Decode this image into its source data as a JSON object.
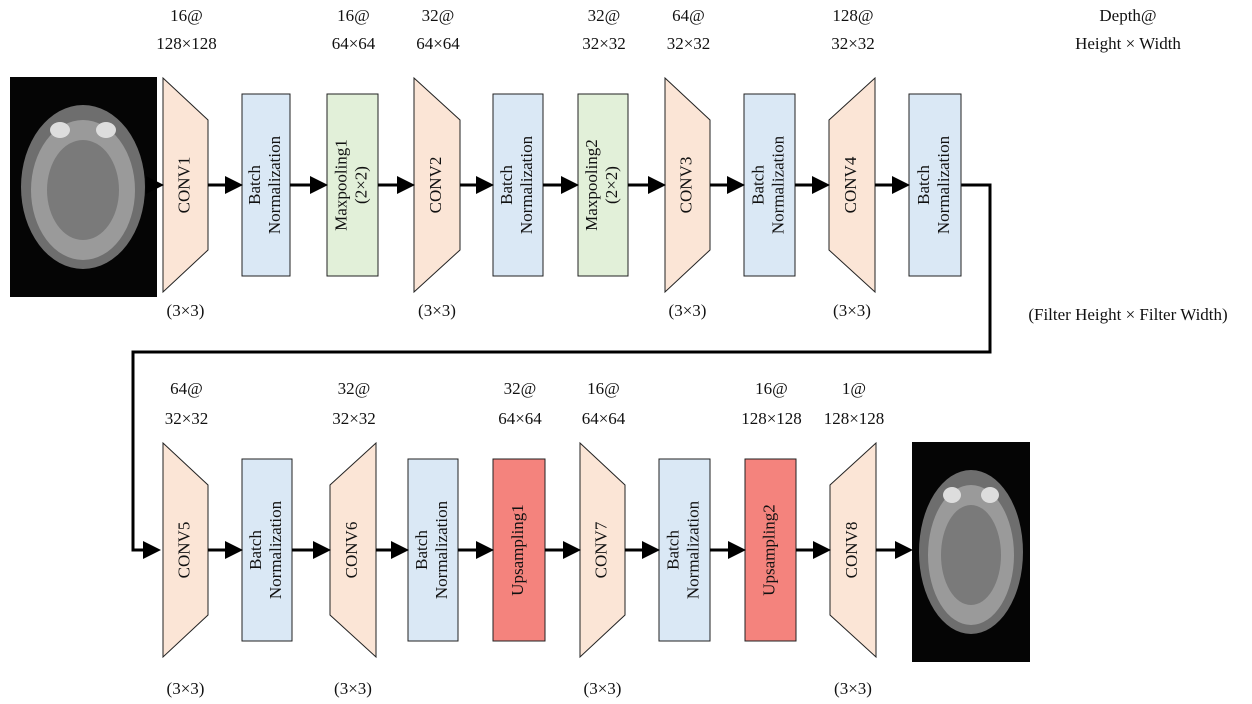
{
  "legend": {
    "dims": [
      "Depth@",
      "Height × Width"
    ],
    "filter": "(Filter Height × Filter Width)"
  },
  "encoder": [
    {
      "label": [
        "CONV1"
      ],
      "dims": [
        "16@",
        "128×128"
      ],
      "filter": "(3×3)"
    },
    {
      "label": [
        "Batch",
        "Normalization"
      ]
    },
    {
      "label": [
        "Maxpooling1",
        "(2×2)"
      ],
      "dims": [
        "16@",
        "64×64"
      ]
    },
    {
      "label": [
        "CONV2"
      ],
      "dims": [
        "32@",
        "64×64"
      ],
      "filter": "(3×3)"
    },
    {
      "label": [
        "Batch",
        "Normalization"
      ]
    },
    {
      "label": [
        "Maxpooling2",
        "(2×2)"
      ],
      "dims": [
        "32@",
        "32×32"
      ]
    },
    {
      "label": [
        "CONV3"
      ],
      "dims": [
        "64@",
        "32×32"
      ],
      "filter": "(3×3)"
    },
    {
      "label": [
        "Batch",
        "Normalization"
      ]
    },
    {
      "label": [
        "CONV4"
      ],
      "dims": [
        "128@",
        "32×32"
      ],
      "filter": "(3×3)"
    },
    {
      "label": [
        "Batch",
        "Normalization"
      ]
    }
  ],
  "decoder": [
    {
      "label": [
        "CONV5"
      ],
      "dims": [
        "64@",
        "32×32"
      ],
      "filter": "(3×3)"
    },
    {
      "label": [
        "Batch",
        "Normalization"
      ]
    },
    {
      "label": [
        "CONV6"
      ],
      "dims": [
        "32@",
        "32×32"
      ],
      "filter": "(3×3)"
    },
    {
      "label": [
        "Batch",
        "Normalization"
      ]
    },
    {
      "label": [
        "Upsampling1"
      ],
      "dims": [
        "32@",
        "64×64"
      ]
    },
    {
      "label": [
        "CONV7"
      ],
      "dims": [
        "16@",
        "64×64"
      ],
      "filter": "(3×3)"
    },
    {
      "label": [
        "Batch",
        "Normalization"
      ]
    },
    {
      "label": [
        "Upsampling2"
      ],
      "dims": [
        "16@",
        "128×128"
      ]
    },
    {
      "label": [
        "CONV8"
      ],
      "dims": [
        "1@",
        "128×128"
      ],
      "filter": "(3×3)"
    }
  ]
}
